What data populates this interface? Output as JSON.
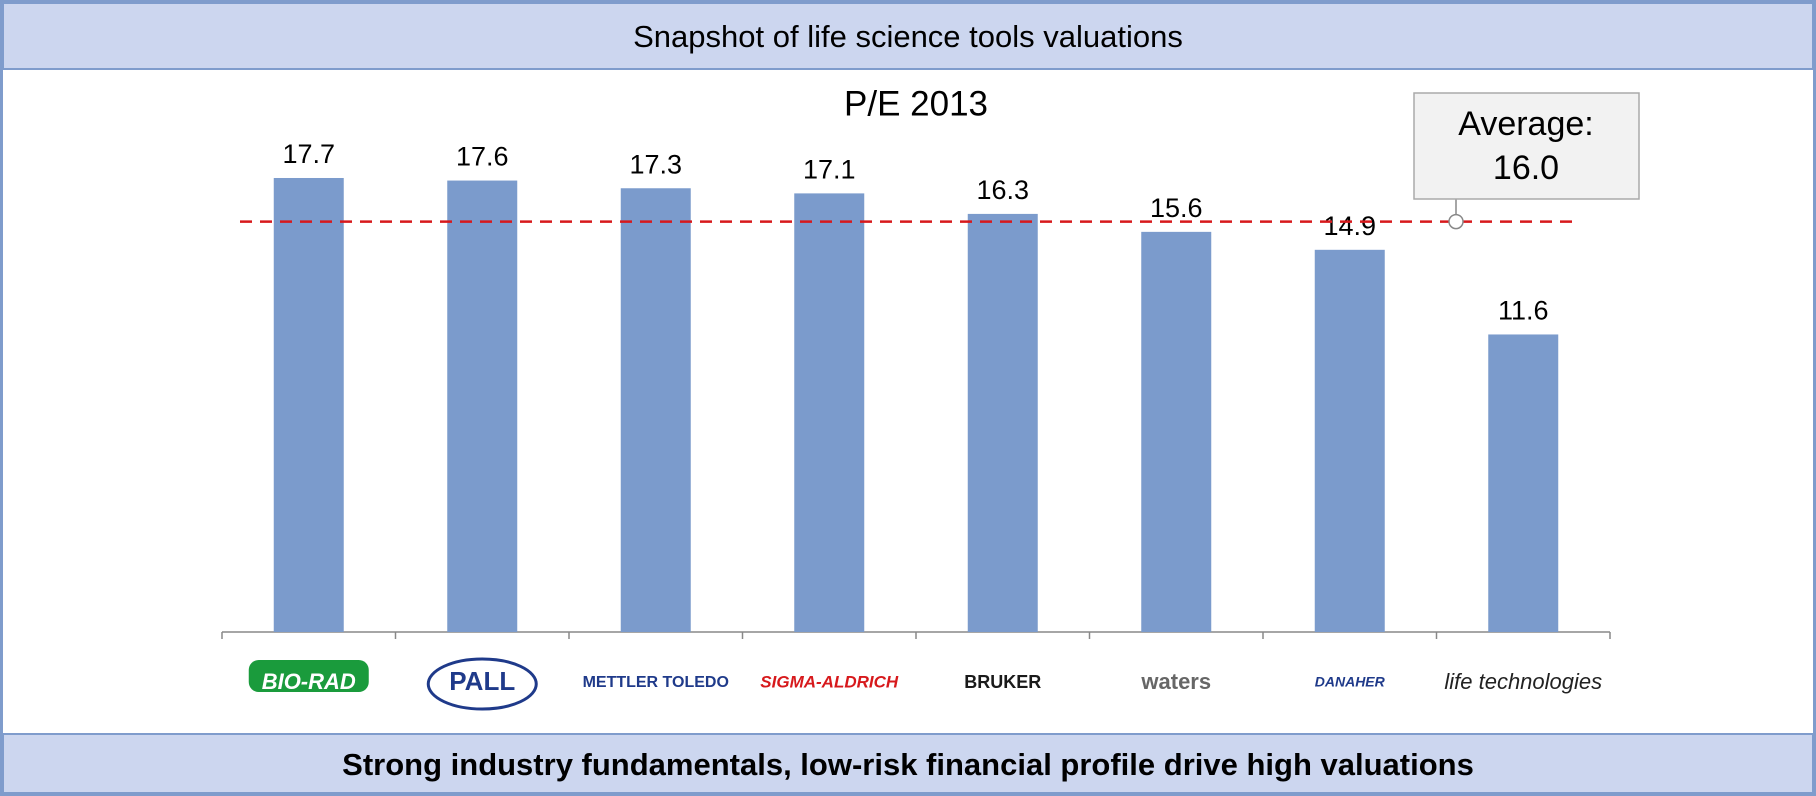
{
  "chart_data": {
    "type": "bar",
    "header": "Snapshot of life science tools valuations",
    "title": "P/E 2013",
    "footer": "Strong industry fundamentals, low-risk financial profile drive high valuations",
    "categories": [
      "BIO-RAD",
      "PALL",
      "METTLER TOLEDO",
      "SIGMA-ALDRICH",
      "BRUKER",
      "waters",
      "DANAHER",
      "life technologies"
    ],
    "values": [
      17.7,
      17.6,
      17.3,
      17.1,
      16.3,
      15.6,
      14.9,
      11.6
    ],
    "color": "#7b9bcc",
    "ylim": [
      0,
      20
    ],
    "average": {
      "label": "Average:",
      "value": 16,
      "value_label": "16.0",
      "color": "#d7191c"
    }
  }
}
